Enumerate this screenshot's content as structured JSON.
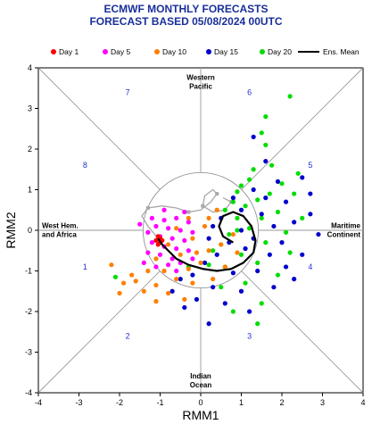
{
  "header": {
    "line1": "ECMWF MONTHLY FORECASTS",
    "line2": "FORECAST  BASED 05/08/2024 00UTC"
  },
  "chart_data": {
    "type": "scatter",
    "xlabel": "RMM1",
    "ylabel": "RMM2",
    "xlim": [
      -4,
      4
    ],
    "ylim": [
      -4,
      4
    ],
    "xticks": [
      "-4",
      "-3",
      "-2",
      "-1",
      "0",
      "1",
      "2",
      "3",
      "4"
    ],
    "yticks": [
      "-4",
      "-3",
      "-2",
      "-1",
      "0",
      "1",
      "2",
      "3",
      "4"
    ],
    "legend": [
      {
        "label": "Day 1",
        "color": "#ff0000",
        "kind": "dot"
      },
      {
        "label": "Day 5",
        "color": "#ff00ff",
        "kind": "dot"
      },
      {
        "label": "Day 10",
        "color": "#ff7f00",
        "kind": "dot"
      },
      {
        "label": "Day 15",
        "color": "#0000cc",
        "kind": "dot"
      },
      {
        "label": "Day 20",
        "color": "#00dd00",
        "kind": "dot"
      },
      {
        "label": "Ens. Mean",
        "color": "#000000",
        "kind": "line"
      }
    ],
    "phases": [
      {
        "label": "1",
        "x": -2.85,
        "y": -0.9
      },
      {
        "label": "2",
        "x": -1.8,
        "y": -2.6
      },
      {
        "label": "3",
        "x": 1.2,
        "y": -2.6
      },
      {
        "label": "4",
        "x": 2.7,
        "y": -0.9
      },
      {
        "label": "5",
        "x": 2.7,
        "y": 1.6
      },
      {
        "label": "6",
        "x": 1.2,
        "y": 3.4
      },
      {
        "label": "7",
        "x": -1.8,
        "y": 3.4
      },
      {
        "label": "8",
        "x": -2.85,
        "y": 1.6
      }
    ],
    "regions": [
      {
        "lines": [
          "Western",
          "Pacific"
        ],
        "x": 0,
        "y": 3.7
      },
      {
        "lines": [
          "West Hem.",
          "and Africa"
        ],
        "x": -3.45,
        "y": 0.05
      },
      {
        "lines": [
          "Maritime",
          "Continent"
        ],
        "x": 3.45,
        "y": 0.05
      },
      {
        "lines": [
          "Indian",
          "Ocean"
        ],
        "x": 0,
        "y": -3.65
      }
    ],
    "unit_circle_radius": 1,
    "series": [
      {
        "name": "Day 20",
        "color": "#00dd00",
        "points": [
          [
            2.2,
            3.3
          ],
          [
            1.6,
            2.8
          ],
          [
            1.5,
            2.4
          ],
          [
            1.6,
            2.1
          ],
          [
            1.75,
            1.6
          ],
          [
            1.3,
            1.5
          ],
          [
            2.4,
            1.4
          ],
          [
            1.2,
            1.25
          ],
          [
            1.0,
            1.1
          ],
          [
            0.9,
            0.95
          ],
          [
            2.0,
            1.15
          ],
          [
            2.3,
            0.9
          ],
          [
            1.7,
            0.9
          ],
          [
            1.4,
            0.75
          ],
          [
            1.1,
            0.6
          ],
          [
            0.8,
            0.7
          ],
          [
            0.6,
            0.5
          ],
          [
            1.9,
            0.45
          ],
          [
            2.5,
            0.3
          ],
          [
            1.5,
            0.3
          ],
          [
            0.9,
            0.3
          ],
          [
            1.2,
            0.05
          ],
          [
            2.1,
            -0.05
          ],
          [
            0.7,
            -0.1
          ],
          [
            1.6,
            -0.3
          ],
          [
            0.5,
            -0.35
          ],
          [
            2.2,
            -0.55
          ],
          [
            1.0,
            -0.6
          ],
          [
            0.3,
            -0.5
          ],
          [
            1.4,
            -0.8
          ],
          [
            0.6,
            -0.9
          ],
          [
            1.9,
            -1.1
          ],
          [
            0.2,
            -0.85
          ],
          [
            1.1,
            -1.3
          ],
          [
            0.5,
            -1.4
          ],
          [
            -0.3,
            -0.9
          ],
          [
            1.5,
            -1.8
          ],
          [
            0.8,
            -2.0
          ],
          [
            1.4,
            -2.3
          ],
          [
            -2.1,
            -1.15
          ],
          [
            0.9,
            0.0
          ]
        ]
      },
      {
        "name": "Day 15",
        "color": "#0000cc",
        "points": [
          [
            1.3,
            2.3
          ],
          [
            1.6,
            1.7
          ],
          [
            2.5,
            1.3
          ],
          [
            1.9,
            1.2
          ],
          [
            1.3,
            1.0
          ],
          [
            2.7,
            0.9
          ],
          [
            0.8,
            0.8
          ],
          [
            2.1,
            0.7
          ],
          [
            1.0,
            0.5
          ],
          [
            2.7,
            0.4
          ],
          [
            1.5,
            0.4
          ],
          [
            0.5,
            0.3
          ],
          [
            2.3,
            0.2
          ],
          [
            1.8,
            0.1
          ],
          [
            1.0,
            0.0
          ],
          [
            0.3,
            0.1
          ],
          [
            2.9,
            -0.1
          ],
          [
            1.3,
            -0.2
          ],
          [
            0.7,
            -0.3
          ],
          [
            2.0,
            -0.3
          ],
          [
            0.2,
            -0.2
          ],
          [
            2.5,
            -0.6
          ],
          [
            1.7,
            -0.6
          ],
          [
            1.1,
            -0.45
          ],
          [
            0.4,
            -0.6
          ],
          [
            2.1,
            -0.9
          ],
          [
            1.4,
            -1.0
          ],
          [
            0.8,
            -1.05
          ],
          [
            0.1,
            -0.8
          ],
          [
            -0.2,
            -1.1
          ],
          [
            1.8,
            -1.4
          ],
          [
            1.0,
            -1.5
          ],
          [
            0.3,
            -1.4
          ],
          [
            -0.5,
            -1.2
          ],
          [
            0.6,
            -1.8
          ],
          [
            -0.1,
            -1.7
          ],
          [
            1.2,
            -2.0
          ],
          [
            -0.4,
            -1.9
          ],
          [
            0.2,
            -2.3
          ],
          [
            2.3,
            -1.2
          ],
          [
            -0.7,
            -1.5
          ],
          [
            1.6,
            0.8
          ]
        ]
      },
      {
        "name": "Day 10",
        "color": "#ff7f00",
        "points": [
          [
            0.4,
            0.5
          ],
          [
            -0.3,
            0.3
          ],
          [
            0.1,
            0.1
          ],
          [
            -0.6,
            0.05
          ],
          [
            0.8,
            -0.1
          ],
          [
            -0.2,
            -0.2
          ],
          [
            0.5,
            -0.35
          ],
          [
            -0.8,
            -0.35
          ],
          [
            0.2,
            -0.5
          ],
          [
            -0.5,
            -0.6
          ],
          [
            0.9,
            -0.55
          ],
          [
            -1.1,
            -0.7
          ],
          [
            0.0,
            -0.8
          ],
          [
            -0.3,
            -0.95
          ],
          [
            0.6,
            -0.9
          ],
          [
            -0.9,
            -1.0
          ],
          [
            -1.3,
            -1.0
          ],
          [
            -0.6,
            -1.2
          ],
          [
            -1.6,
            -1.25
          ],
          [
            -1.9,
            -1.3
          ],
          [
            -1.1,
            -1.35
          ],
          [
            -0.2,
            -1.3
          ],
          [
            -1.4,
            -1.5
          ],
          [
            -2.0,
            -1.55
          ],
          [
            -0.8,
            -1.55
          ],
          [
            -1.1,
            -1.75
          ],
          [
            -0.4,
            -1.7
          ],
          [
            -1.7,
            -1.1
          ],
          [
            -2.2,
            -0.85
          ],
          [
            0.3,
            -1.2
          ],
          [
            -0.1,
            -0.55
          ],
          [
            0.2,
            0.3
          ]
        ]
      },
      {
        "name": "Day 5",
        "color": "#ff00ff",
        "points": [
          [
            -1.2,
            0.3
          ],
          [
            -0.9,
            0.25
          ],
          [
            -0.6,
            0.3
          ],
          [
            -0.3,
            0.2
          ],
          [
            -1.1,
            0.1
          ],
          [
            -0.8,
            0.05
          ],
          [
            -0.5,
            0.0
          ],
          [
            -0.2,
            -0.05
          ],
          [
            -1.3,
            -0.05
          ],
          [
            -1.0,
            -0.15
          ],
          [
            -0.7,
            -0.2
          ],
          [
            -0.4,
            -0.25
          ],
          [
            -1.2,
            -0.3
          ],
          [
            -0.9,
            -0.4
          ],
          [
            -0.6,
            -0.45
          ],
          [
            -0.3,
            -0.5
          ],
          [
            -1.0,
            -0.6
          ],
          [
            -0.7,
            -0.7
          ],
          [
            -1.3,
            -0.55
          ],
          [
            -0.5,
            -0.8
          ],
          [
            -0.2,
            -0.7
          ],
          [
            -0.8,
            -0.85
          ],
          [
            -1.1,
            -0.9
          ],
          [
            -0.6,
            -1.0
          ],
          [
            -0.4,
            0.45
          ],
          [
            -0.9,
            0.5
          ],
          [
            -1.5,
            0.15
          ],
          [
            -1.4,
            -0.8
          ]
        ]
      },
      {
        "name": "Day 1",
        "color": "#ff0000",
        "points": [
          [
            -1.05,
            -0.15
          ],
          [
            -1.0,
            -0.2
          ],
          [
            -0.95,
            -0.25
          ],
          [
            -1.1,
            -0.25
          ],
          [
            -1.0,
            -0.3
          ],
          [
            -1.05,
            -0.35
          ]
        ]
      }
    ],
    "ens_mean": [
      [
        -1.05,
        -0.2
      ],
      [
        -0.95,
        -0.35
      ],
      [
        -0.8,
        -0.5
      ],
      [
        -0.6,
        -0.7
      ],
      [
        -0.3,
        -0.85
      ],
      [
        0.05,
        -0.95
      ],
      [
        0.4,
        -1.0
      ],
      [
        0.75,
        -0.95
      ],
      [
        1.05,
        -0.8
      ],
      [
        1.3,
        -0.55
      ],
      [
        1.35,
        -0.25
      ],
      [
        1.25,
        0.1
      ],
      [
        1.05,
        0.35
      ],
      [
        0.8,
        0.45
      ],
      [
        0.55,
        0.35
      ],
      [
        0.45,
        0.1
      ],
      [
        0.55,
        -0.15
      ],
      [
        0.8,
        -0.3
      ]
    ],
    "grey_track": [
      [
        -1.05,
        -0.2
      ],
      [
        -1.3,
        0.1
      ],
      [
        -1.45,
        0.35
      ],
      [
        -1.3,
        0.55
      ],
      [
        -0.95,
        0.6
      ],
      [
        -0.6,
        0.55
      ],
      [
        -0.3,
        0.45
      ],
      [
        0.0,
        0.5
      ],
      [
        0.25,
        0.7
      ],
      [
        0.4,
        0.9
      ],
      [
        0.3,
        1.0
      ],
      [
        0.1,
        0.85
      ],
      [
        0.05,
        0.6
      ],
      [
        0.3,
        0.45
      ],
      [
        0.6,
        0.5
      ],
      [
        0.75,
        0.7
      ],
      [
        0.55,
        0.8
      ]
    ]
  }
}
